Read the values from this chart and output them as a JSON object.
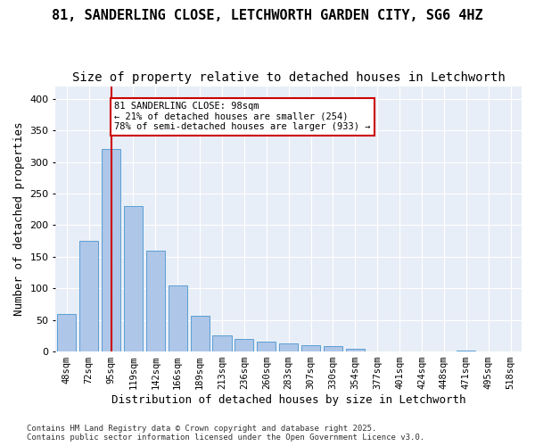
{
  "title1": "81, SANDERLING CLOSE, LETCHWORTH GARDEN CITY, SG6 4HZ",
  "title2": "Size of property relative to detached houses in Letchworth",
  "xlabel": "Distribution of detached houses by size in Letchworth",
  "ylabel": "Number of detached properties",
  "bins": [
    "48sqm",
    "72sqm",
    "95sqm",
    "119sqm",
    "142sqm",
    "166sqm",
    "189sqm",
    "213sqm",
    "236sqm",
    "260sqm",
    "283sqm",
    "307sqm",
    "330sqm",
    "354sqm",
    "377sqm",
    "401sqm",
    "424sqm",
    "448sqm",
    "471sqm",
    "495sqm",
    "518sqm"
  ],
  "values": [
    60,
    175,
    320,
    230,
    160,
    105,
    57,
    25,
    20,
    15,
    13,
    10,
    8,
    5,
    0,
    0,
    0,
    0,
    2,
    0,
    0
  ],
  "bar_color": "#aec6e8",
  "bar_edge_color": "#5a9fd4",
  "property_size_sqm": 98,
  "property_bin_index": 2,
  "vline_color": "#cc0000",
  "annotation_text": "81 SANDERLING CLOSE: 98sqm\n← 21% of detached houses are smaller (254)\n78% of semi-detached houses are larger (933) →",
  "annotation_box_color": "#cc0000",
  "ylim": [
    0,
    420
  ],
  "yticks": [
    0,
    50,
    100,
    150,
    200,
    250,
    300,
    350,
    400
  ],
  "background_color": "#e8eef7",
  "grid_color": "#ffffff",
  "footer1": "Contains HM Land Registry data © Crown copyright and database right 2025.",
  "footer2": "Contains public sector information licensed under the Open Government Licence v3.0.",
  "title1_fontsize": 11,
  "title2_fontsize": 10,
  "xlabel_fontsize": 9,
  "ylabel_fontsize": 9
}
